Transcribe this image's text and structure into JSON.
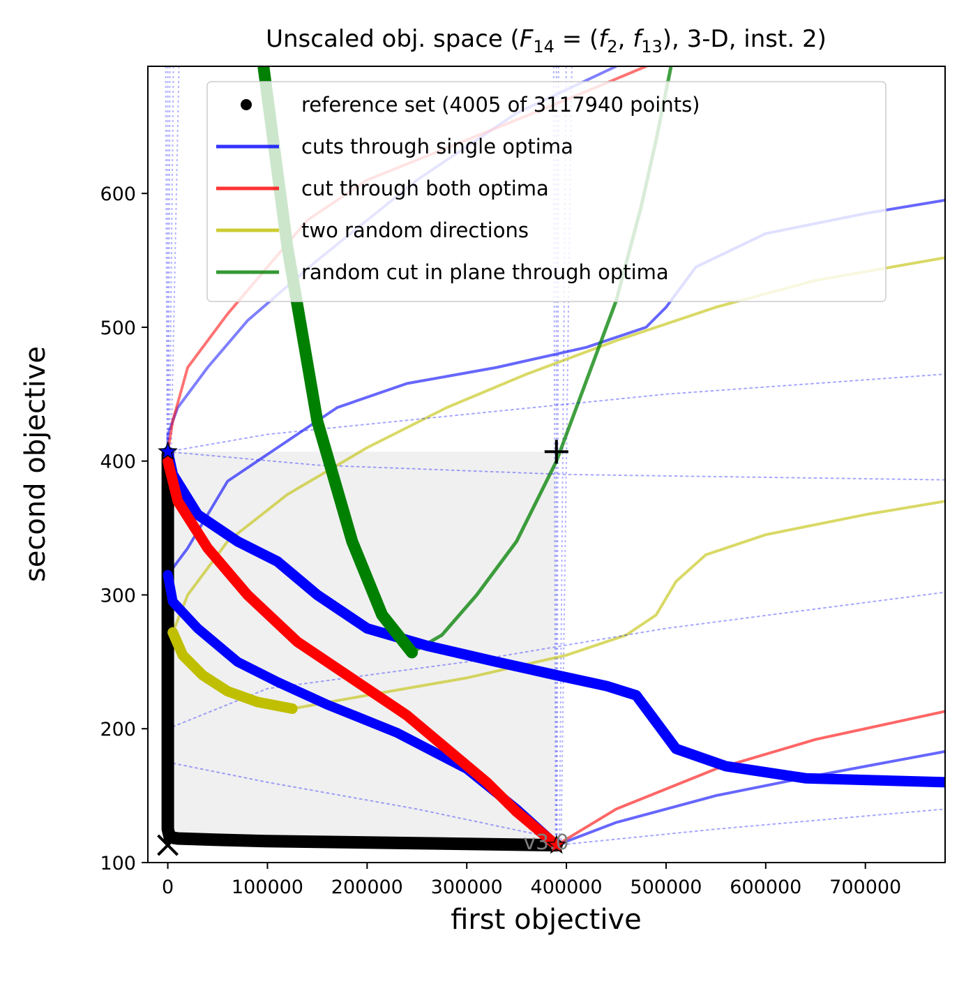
{
  "chart_data": {
    "type": "line",
    "title": "Unscaled obj. space (",
    "title_math": "F",
    "title_math_sub": "14",
    "title_mid": " = (",
    "title_f1": "f",
    "title_f1_sub": "2",
    "title_sep": ", ",
    "title_f2": "f",
    "title_f2_sub": "13",
    "title_end": "), 3-D, inst. 2)",
    "xlabel": "first objective",
    "ylabel": "second objective",
    "xlim": [
      -20000,
      780000
    ],
    "ylim": [
      100,
      695
    ],
    "xticks": [
      0,
      100000,
      200000,
      300000,
      400000,
      500000,
      600000,
      700000
    ],
    "xtick_labels": [
      "0",
      "100000",
      "200000",
      "300000",
      "400000",
      "500000",
      "600000",
      "700000"
    ],
    "yticks": [
      100,
      200,
      300,
      400,
      500,
      600
    ],
    "ytick_labels": [
      "100",
      "200",
      "300",
      "400",
      "500",
      "600"
    ],
    "grid": false,
    "legend_placement": "top-center",
    "watermark": "v3.0",
    "reference_box": {
      "x0": 0,
      "x1": 390000,
      "y0": 113,
      "y1": 407,
      "color": "#f0f0f0"
    },
    "markers": {
      "ideal": {
        "x": 0,
        "y": 113,
        "symbol": "x"
      },
      "nadir": {
        "x": 390000,
        "y": 407,
        "symbol": "+"
      },
      "opt1": {
        "x": 0,
        "y": 407,
        "color": "#0000ff"
      },
      "opt2": {
        "x": 390000,
        "y": 113,
        "color": "#ff0000"
      }
    },
    "series": [
      {
        "name": "reference set (4005 of 3117940 points)",
        "role": "front",
        "color": "#000000",
        "points": [
          [
            0,
            405
          ],
          [
            0,
            360
          ],
          [
            0,
            300
          ],
          [
            0,
            250
          ],
          [
            0,
            200
          ],
          [
            0,
            160
          ],
          [
            0,
            135
          ],
          [
            0,
            125
          ],
          [
            2000,
            119
          ],
          [
            10000,
            118
          ],
          [
            50000,
            117
          ],
          [
            100000,
            116
          ],
          [
            200000,
            115
          ],
          [
            300000,
            114
          ],
          [
            390000,
            113
          ]
        ]
      },
      {
        "name": "cuts through single optima",
        "role": "legend",
        "color": "#0000ff",
        "points": [
          [
            0,
            407
          ],
          [
            5000,
            390
          ],
          [
            30000,
            360
          ],
          [
            70000,
            340
          ],
          [
            110000,
            325
          ],
          [
            150000,
            300
          ],
          [
            200000,
            275
          ],
          [
            260000,
            262
          ],
          [
            330000,
            250
          ],
          [
            390000,
            240
          ],
          [
            440000,
            232
          ],
          [
            470000,
            225
          ],
          [
            490000,
            205
          ],
          [
            510000,
            185
          ],
          [
            560000,
            172
          ],
          [
            640000,
            163
          ],
          [
            780000,
            160
          ]
        ]
      },
      {
        "name": "",
        "role": "blue-thin-1",
        "color": "#0000ff",
        "points": [
          [
            0,
            407
          ],
          [
            0,
            420
          ],
          [
            10000,
            440
          ],
          [
            40000,
            470
          ],
          [
            80000,
            505
          ],
          [
            150000,
            550
          ],
          [
            250000,
            610
          ],
          [
            350000,
            660
          ],
          [
            450000,
            695
          ]
        ]
      },
      {
        "name": "",
        "role": "blue-thin-2",
        "color": "#0000ff",
        "points": [
          [
            0,
            315
          ],
          [
            20000,
            335
          ],
          [
            60000,
            385
          ],
          [
            110000,
            410
          ],
          [
            170000,
            440
          ],
          [
            240000,
            458
          ],
          [
            330000,
            470
          ],
          [
            420000,
            485
          ],
          [
            480000,
            500
          ],
          [
            500000,
            515
          ],
          [
            530000,
            545
          ],
          [
            600000,
            570
          ],
          [
            700000,
            585
          ],
          [
            780000,
            595
          ]
        ]
      },
      {
        "name": "",
        "role": "blue-thin-3",
        "color": "#0000ff",
        "points": [
          [
            390000,
            113
          ],
          [
            450000,
            130
          ],
          [
            550000,
            150
          ],
          [
            650000,
            165
          ],
          [
            780000,
            183
          ]
        ]
      },
      {
        "name": "",
        "role": "blue-thick-2",
        "color": "#0000ff",
        "points": [
          [
            0,
            315
          ],
          [
            5000,
            295
          ],
          [
            30000,
            275
          ],
          [
            70000,
            250
          ],
          [
            110000,
            235
          ],
          [
            160000,
            218
          ],
          [
            230000,
            197
          ],
          [
            300000,
            170
          ],
          [
            350000,
            140
          ],
          [
            390000,
            113
          ]
        ]
      },
      {
        "name": "cut through both optima",
        "role": "legend",
        "color": "#ff0000",
        "points": [
          [
            0,
            400
          ],
          [
            10000,
            370
          ],
          [
            40000,
            335
          ],
          [
            80000,
            300
          ],
          [
            130000,
            265
          ],
          [
            190000,
            235
          ],
          [
            240000,
            210
          ],
          [
            280000,
            185
          ],
          [
            320000,
            160
          ],
          [
            350000,
            138
          ],
          [
            390000,
            113
          ]
        ]
      },
      {
        "name": "",
        "role": "red-thin-1",
        "color": "#ff0000",
        "points": [
          [
            0,
            407
          ],
          [
            5000,
            430
          ],
          [
            20000,
            470
          ],
          [
            60000,
            510
          ],
          [
            100000,
            545
          ],
          [
            140000,
            580
          ],
          [
            200000,
            610
          ],
          [
            300000,
            640
          ],
          [
            400000,
            670
          ],
          [
            480000,
            695
          ]
        ]
      },
      {
        "name": "",
        "role": "red-thin-2",
        "color": "#ff0000",
        "points": [
          [
            390000,
            113
          ],
          [
            450000,
            140
          ],
          [
            550000,
            170
          ],
          [
            650000,
            192
          ],
          [
            780000,
            213
          ]
        ]
      },
      {
        "name": "two random directions",
        "role": "legend",
        "color": "#bfbf00",
        "points": [
          [
            5000,
            272
          ],
          [
            15000,
            255
          ],
          [
            35000,
            240
          ],
          [
            60000,
            228
          ],
          [
            90000,
            220
          ],
          [
            125000,
            215
          ]
        ]
      },
      {
        "name": "",
        "role": "yellow-thin-1",
        "color": "#bfbf00",
        "points": [
          [
            5000,
            272
          ],
          [
            20000,
            300
          ],
          [
            60000,
            340
          ],
          [
            120000,
            375
          ],
          [
            200000,
            410
          ],
          [
            280000,
            440
          ],
          [
            360000,
            465
          ],
          [
            450000,
            490
          ],
          [
            550000,
            515
          ],
          [
            650000,
            535
          ],
          [
            780000,
            552
          ]
        ]
      },
      {
        "name": "",
        "role": "yellow-thin-2",
        "color": "#bfbf00",
        "points": [
          [
            125000,
            215
          ],
          [
            200000,
            225
          ],
          [
            300000,
            238
          ],
          [
            400000,
            255
          ],
          [
            460000,
            270
          ],
          [
            490000,
            285
          ],
          [
            510000,
            310
          ],
          [
            540000,
            330
          ],
          [
            600000,
            345
          ],
          [
            700000,
            360
          ],
          [
            780000,
            370
          ]
        ]
      },
      {
        "name": "random cut in plane through optima",
        "role": "legend",
        "color": "#008000",
        "points": [
          [
            96000,
            695
          ],
          [
            120000,
            560
          ],
          [
            150000,
            430
          ],
          [
            185000,
            340
          ],
          [
            215000,
            285
          ],
          [
            245000,
            257
          ]
        ]
      },
      {
        "name": "",
        "role": "green-thin",
        "color": "#008000",
        "points": [
          [
            245000,
            257
          ],
          [
            275000,
            270
          ],
          [
            310000,
            300
          ],
          [
            350000,
            340
          ],
          [
            390000,
            400
          ],
          [
            420000,
            460
          ],
          [
            450000,
            520
          ],
          [
            475000,
            590
          ],
          [
            490000,
            640
          ],
          [
            505000,
            695
          ]
        ]
      },
      {
        "name": "",
        "role": "dotted-1",
        "color": "#0000ff",
        "points": [
          [
            0,
            407
          ],
          [
            100000,
            420
          ],
          [
            300000,
            435
          ],
          [
            500000,
            450
          ],
          [
            780000,
            465
          ]
        ]
      },
      {
        "name": "",
        "role": "dotted-2",
        "color": "#0000ff",
        "points": [
          [
            0,
            407
          ],
          [
            150000,
            397
          ],
          [
            400000,
            390
          ],
          [
            780000,
            386
          ]
        ]
      },
      {
        "name": "",
        "role": "dotted-3",
        "color": "#0000ff",
        "points": [
          [
            0,
            200
          ],
          [
            100000,
            230
          ],
          [
            300000,
            250
          ],
          [
            500000,
            275
          ],
          [
            780000,
            302
          ]
        ]
      },
      {
        "name": "",
        "role": "dotted-4",
        "color": "#0000ff",
        "points": [
          [
            0,
            175
          ],
          [
            100000,
            160
          ],
          [
            250000,
            140
          ],
          [
            390000,
            118
          ]
        ]
      },
      {
        "name": "",
        "role": "dotted-5",
        "color": "#0000ff",
        "points": [
          [
            390000,
            113
          ],
          [
            550000,
            125
          ],
          [
            780000,
            140
          ]
        ]
      }
    ],
    "legend": [
      {
        "label": "reference set (4005 of 3117940 points)",
        "symbol": "dot",
        "color": "#000000"
      },
      {
        "label": "cuts through single optima",
        "symbol": "line",
        "color": "#0000ff"
      },
      {
        "label": "cut through both optima",
        "symbol": "line",
        "color": "#ff0000"
      },
      {
        "label": "two random directions",
        "symbol": "line",
        "color": "#bfbf00"
      },
      {
        "label": "random cut in plane through optima",
        "symbol": "line",
        "color": "#008000"
      }
    ]
  }
}
